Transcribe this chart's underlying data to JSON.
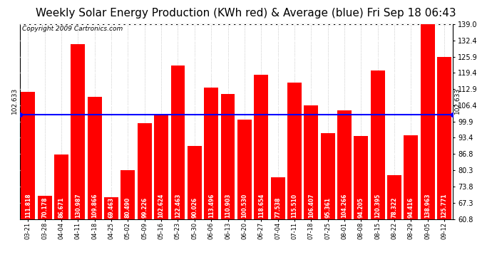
{
  "title": "Weekly Solar Energy Production (KWh red) & Average (blue) Fri Sep 18 06:43",
  "copyright": "Copyright 2009 Cartronics.com",
  "categories": [
    "03-21",
    "03-28",
    "04-04",
    "04-11",
    "04-18",
    "04-25",
    "05-02",
    "05-09",
    "05-16",
    "05-23",
    "05-30",
    "06-06",
    "06-13",
    "06-20",
    "06-27",
    "07-04",
    "07-11",
    "07-18",
    "07-25",
    "08-01",
    "08-08",
    "08-15",
    "08-22",
    "08-29",
    "09-05",
    "09-12"
  ],
  "values": [
    111.818,
    70.178,
    86.671,
    130.987,
    109.866,
    69.463,
    80.49,
    99.226,
    102.624,
    122.463,
    90.026,
    113.496,
    110.903,
    100.53,
    118.654,
    77.538,
    115.51,
    106.407,
    95.361,
    104.266,
    94.205,
    120.395,
    78.322,
    94.416,
    138.963,
    125.771
  ],
  "average": 102.633,
  "bar_color": "#ff0000",
  "avg_line_color": "#0000ff",
  "bg_color": "#ffffff",
  "plot_bg_color": "#ffffff",
  "grid_color": "#aaaaaa",
  "grid_color2": "#ffffff",
  "ylim_min": 60.8,
  "ylim_max": 139.0,
  "yticks": [
    60.8,
    67.3,
    73.8,
    80.3,
    86.8,
    93.4,
    99.9,
    106.4,
    112.9,
    119.4,
    125.9,
    132.4,
    139.0
  ],
  "title_fontsize": 11,
  "copyright_fontsize": 6.5,
  "avg_label": "102.633",
  "val_label_fontsize": 5.5,
  "avg_label_fontsize": 6.5
}
